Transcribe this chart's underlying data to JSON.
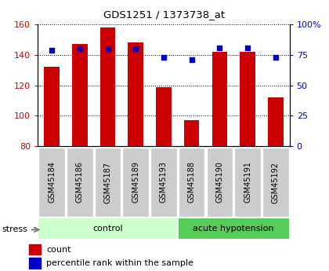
{
  "title": "GDS1251 / 1373738_at",
  "samples": [
    "GSM45184",
    "GSM45186",
    "GSM45187",
    "GSM45189",
    "GSM45193",
    "GSM45188",
    "GSM45190",
    "GSM45191",
    "GSM45192"
  ],
  "counts": [
    132,
    147,
    158,
    148,
    119,
    97,
    142,
    142,
    112
  ],
  "percentiles": [
    79,
    80,
    80,
    80,
    73,
    71,
    81,
    81,
    73
  ],
  "ylim_left": [
    80,
    160
  ],
  "ylim_right": [
    0,
    100
  ],
  "yticks_left": [
    80,
    100,
    120,
    140,
    160
  ],
  "yticks_right": [
    0,
    25,
    50,
    75,
    100
  ],
  "ytick_labels_right": [
    "0",
    "25",
    "50",
    "75",
    "100%"
  ],
  "bar_color": "#cc0000",
  "dot_color": "#0000cc",
  "n_control": 5,
  "n_acute": 4,
  "control_label": "control",
  "acute_label": "acute hypotension",
  "stress_label": "stress",
  "group_bg_control": "#ccffcc",
  "group_bg_acute": "#55cc55",
  "sample_bg": "#cccccc",
  "legend_count": "count",
  "legend_pct": "percentile rank within the sample",
  "bar_width": 0.55
}
